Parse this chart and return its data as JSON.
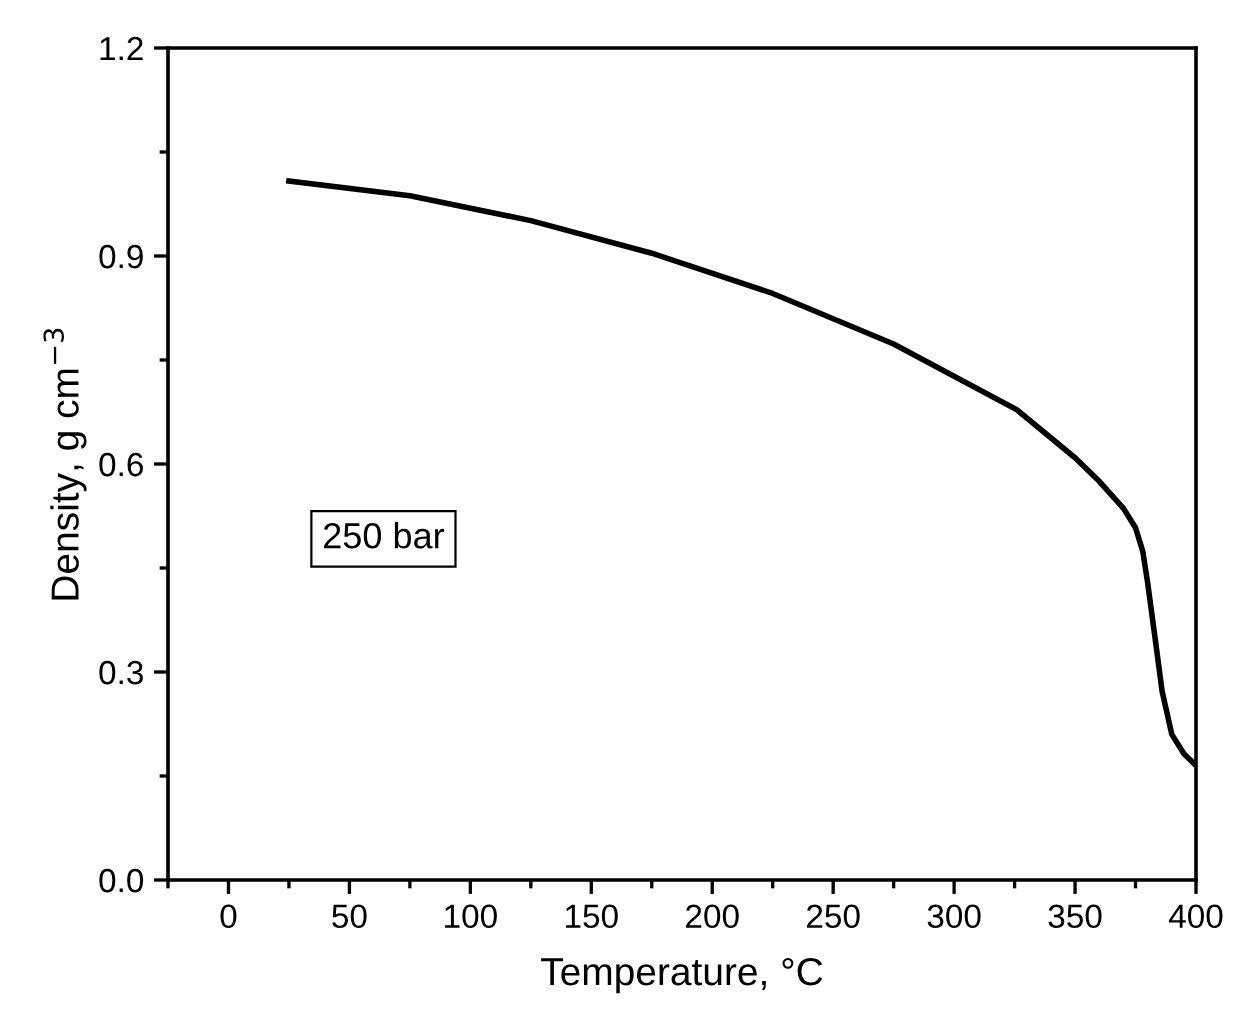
{
  "chart_data": {
    "type": "line",
    "xlabel": "Temperature, °C",
    "ylabel": "Density, g cm$^{−3}$",
    "x": [
      25,
      75,
      125,
      175,
      225,
      275,
      326,
      350,
      360,
      370,
      375,
      378,
      380,
      383,
      386,
      390,
      395,
      400
    ],
    "series": [
      {
        "color": "#000000",
        "values": [
          1.008,
          0.987,
          0.951,
          0.904,
          0.846,
          0.773,
          0.678,
          0.609,
          0.575,
          0.536,
          0.508,
          0.474,
          0.429,
          0.351,
          0.272,
          0.21,
          0.182,
          0.165
        ]
      }
    ],
    "xlim": [
      -25,
      400
    ],
    "xticks": [
      0,
      50,
      100,
      150,
      200,
      250,
      300,
      350,
      400
    ],
    "ylim": [
      0,
      1.2
    ],
    "yticks": [
      {
        "value": 0,
        "label": "0.0"
      },
      0.3,
      0.6,
      0.9,
      1.2
    ],
    "annotations": [
      "250 bar"
    ],
    "grid": false,
    "legend": false,
    "marker": "none",
    "line_style": "solid"
  }
}
